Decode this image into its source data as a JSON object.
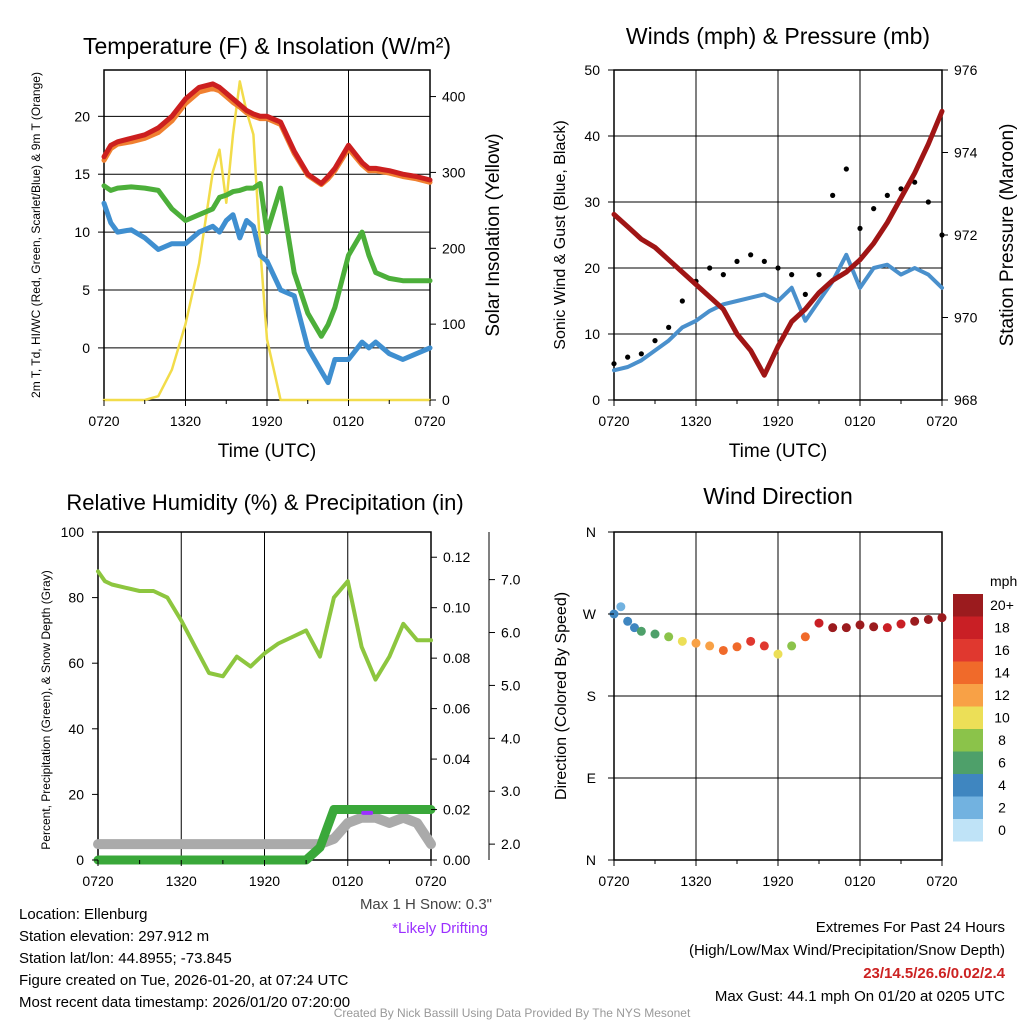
{
  "chart_data": [
    {
      "type": "line",
      "title": "Temperature (F) & Insolation (W/m²)",
      "xlabel": "Time (UTC)",
      "ylabel": "2m T, Td, HI/WC (Red, Green, Scarlet/Blue) & 9m T (Orange)",
      "ylabel_right": "Solar Insolation (Yellow)",
      "xlim": [
        0,
        24
      ],
      "x_ticks": [
        "0720",
        "1320",
        "1920",
        "0120",
        "0720"
      ],
      "ylim": [
        -4.5,
        24
      ],
      "y_ticks": [
        0,
        5,
        10,
        15,
        20
      ],
      "ylim_right": [
        0,
        435
      ],
      "y_ticks_right": [
        0,
        100,
        200,
        300,
        400
      ],
      "x": [
        0,
        0.5,
        1,
        2,
        3,
        4,
        5,
        6,
        7,
        8,
        8.5,
        9,
        9.5,
        10,
        10.5,
        11,
        11.5,
        12,
        13,
        14,
        15,
        16,
        16.5,
        17,
        18,
        19,
        19.5,
        20,
        21,
        22,
        23,
        24
      ],
      "series": [
        {
          "name": "2m T",
          "color": "#cc1f1f",
          "axis": "left",
          "values": [
            16.5,
            17.5,
            17.8,
            18.1,
            18.4,
            19.0,
            20.0,
            21.5,
            22.5,
            22.8,
            22.5,
            22.0,
            21.5,
            21.0,
            20.5,
            20.2,
            20.0,
            20.0,
            19.5,
            17.0,
            15.0,
            14.2,
            14.8,
            15.5,
            17.5,
            16.0,
            15.5,
            15.5,
            15.3,
            15.0,
            14.8,
            14.5
          ]
        },
        {
          "name": "9m T",
          "color": "#f08030",
          "axis": "left",
          "values": [
            16.2,
            17.2,
            17.6,
            17.8,
            18.1,
            18.6,
            19.6,
            21.1,
            22.1,
            22.4,
            22.2,
            21.7,
            21.2,
            20.8,
            20.3,
            20.0,
            19.8,
            19.8,
            19.3,
            16.8,
            14.9,
            14.1,
            14.6,
            15.3,
            17.2,
            15.8,
            15.3,
            15.3,
            15.1,
            14.8,
            14.6,
            14.3
          ]
        },
        {
          "name": "Td",
          "color": "#4caf3a",
          "axis": "left",
          "values": [
            14.0,
            13.6,
            13.8,
            13.9,
            13.8,
            13.6,
            12.0,
            11.0,
            11.5,
            12.0,
            13.0,
            13.2,
            13.5,
            13.6,
            13.8,
            13.8,
            14.2,
            10.0,
            13.8,
            6.5,
            3.0,
            1.0,
            2.0,
            3.5,
            8.0,
            10.0,
            8.0,
            6.5,
            6.0,
            5.8,
            5.8,
            5.8
          ]
        },
        {
          "name": "HI/WC",
          "color": "#3f8fd0",
          "axis": "left",
          "values": [
            12.5,
            10.8,
            10.0,
            10.2,
            9.5,
            8.5,
            9.0,
            9.0,
            10.0,
            10.5,
            10.0,
            11.0,
            11.5,
            9.5,
            11.0,
            10.5,
            8.0,
            7.5,
            5.0,
            4.5,
            0.0,
            -2.0,
            -3.0,
            -1.0,
            -1.0,
            0.5,
            0.0,
            0.5,
            -0.5,
            -1.0,
            -0.5,
            0.0
          ]
        },
        {
          "name": "Solar Insolation",
          "color": "#f2dc4a",
          "axis": "right",
          "values": [
            0,
            0,
            0,
            0,
            0,
            5,
            40,
            100,
            180,
            300,
            330,
            260,
            350,
            420,
            380,
            350,
            200,
            80,
            0,
            0,
            0,
            0,
            0,
            0,
            0,
            0,
            0,
            0,
            0,
            0,
            0,
            0
          ]
        }
      ]
    },
    {
      "type": "line",
      "title": "Winds (mph) & Pressure (mb)",
      "xlabel": "Time (UTC)",
      "ylabel": "Sonic Wind & Gust (Blue, Black)",
      "ylabel_right": "Station Pressure (Maroon)",
      "xlim": [
        0,
        24
      ],
      "x_ticks": [
        "0720",
        "1320",
        "1920",
        "0120",
        "0720"
      ],
      "ylim": [
        0,
        50
      ],
      "y_ticks": [
        0,
        10,
        20,
        30,
        40,
        50
      ],
      "ylim_right": [
        968,
        976
      ],
      "y_ticks_right": [
        968,
        970,
        972,
        974,
        976
      ],
      "x": [
        0,
        1,
        2,
        3,
        4,
        5,
        6,
        7,
        8,
        9,
        10,
        11,
        12,
        13,
        14,
        15,
        16,
        17,
        18,
        19,
        20,
        21,
        22,
        23,
        24
      ],
      "series": [
        {
          "name": "Sonic Wind",
          "color": "#4a90cc",
          "axis": "left",
          "values": [
            4.5,
            5.0,
            6.0,
            7.5,
            9.0,
            11.0,
            12.0,
            13.5,
            14.5,
            15.0,
            15.5,
            16.0,
            15.0,
            17.0,
            12.0,
            15.0,
            18.0,
            22.0,
            17.0,
            20.0,
            20.5,
            19.0,
            20.0,
            19.0,
            17.0
          ]
        },
        {
          "name": "Gust",
          "color": "#000000",
          "axis": "left",
          "values": [
            5.5,
            6.5,
            7.0,
            9.0,
            11.0,
            15.0,
            18.0,
            20.0,
            19.0,
            21.0,
            22.0,
            21.0,
            20.0,
            19.0,
            16.0,
            19.0,
            31.0,
            35.0,
            26.0,
            29.0,
            31.0,
            32.0,
            33.0,
            30.0,
            25.0
          ]
        },
        {
          "name": "Station Pressure",
          "color": "#a01515",
          "axis": "right",
          "values": [
            972.5,
            972.2,
            971.9,
            971.7,
            971.4,
            971.1,
            970.8,
            970.5,
            970.2,
            969.6,
            969.2,
            968.6,
            969.3,
            969.9,
            970.2,
            970.6,
            970.9,
            971.1,
            971.4,
            971.8,
            972.3,
            972.9,
            973.5,
            974.2,
            975.0
          ]
        }
      ]
    },
    {
      "type": "line",
      "title": "Relative Humidity (%) & Precipitation (in)",
      "ylabel": "Percent, Precipitation (Green), & Snow Depth (Gray)",
      "xlim": [
        0,
        24
      ],
      "x_ticks": [
        "0720",
        "1320",
        "1920",
        "0120",
        "0720"
      ],
      "ylim": [
        0,
        100
      ],
      "y_ticks": [
        0,
        20,
        40,
        60,
        80,
        100
      ],
      "ylim_precip": [
        0,
        0.13
      ],
      "y_ticks_precip": [
        "0.00",
        "0.02",
        "0.04",
        "0.06",
        "0.08",
        "0.10",
        "0.12"
      ],
      "ylim_snow": [
        1.7,
        7.9
      ],
      "y_ticks_snow": [
        "2.0",
        "3.0",
        "4.0",
        "5.0",
        "6.0",
        "7.0"
      ],
      "x": [
        0,
        0.5,
        1,
        2,
        3,
        4,
        5,
        6,
        7,
        8,
        9,
        10,
        11,
        12,
        13,
        14,
        15,
        16,
        17,
        18,
        19,
        20,
        21,
        22,
        23,
        24
      ],
      "series": [
        {
          "name": "Relative Humidity",
          "color": "#8dc63f",
          "axis": "left",
          "values": [
            88,
            85,
            84,
            83,
            82,
            82,
            80,
            73,
            65,
            57,
            56,
            62,
            59,
            63,
            66,
            68,
            70,
            62,
            80,
            85,
            65,
            55,
            62,
            72,
            67,
            67
          ]
        },
        {
          "name": "Precipitation",
          "color": "#3aa83a",
          "axis": "precip",
          "values": [
            0,
            0,
            0,
            0,
            0,
            0,
            0,
            0,
            0,
            0,
            0,
            0,
            0,
            0,
            0,
            0,
            0,
            0.005,
            0.02,
            0.02,
            0.02,
            0.02,
            0.02,
            0.02,
            0.02,
            0.02
          ]
        },
        {
          "name": "Snow Depth",
          "color": "#aaaaaa",
          "axis": "snow",
          "values": [
            2.0,
            2.0,
            2.0,
            2.0,
            2.0,
            2.0,
            2.0,
            2.0,
            2.0,
            2.0,
            2.0,
            2.0,
            2.0,
            2.0,
            2.0,
            2.0,
            2.0,
            2.0,
            2.1,
            2.4,
            2.5,
            2.5,
            2.4,
            2.5,
            2.4,
            2.0
          ]
        }
      ],
      "annotations": [
        "Max 1 H Snow: 0.3\"",
        "*Likely Drifting"
      ]
    },
    {
      "type": "scatter",
      "title": "Wind Direction",
      "ylabel": "Direction (Colored By Speed)",
      "xlim": [
        0,
        24
      ],
      "x_ticks": [
        "0720",
        "1320",
        "1920",
        "0120",
        "0720"
      ],
      "y_ticks": [
        "N",
        "E",
        "S",
        "W",
        "N"
      ],
      "ylim": [
        0,
        360
      ],
      "x": [
        0,
        0.5,
        1,
        1.5,
        2,
        3,
        4,
        5,
        6,
        7,
        8,
        9,
        10,
        11,
        12,
        13,
        14,
        15,
        16,
        17,
        18,
        19,
        20,
        21,
        22,
        23,
        24
      ],
      "direction": [
        270,
        278,
        262,
        255,
        251,
        248,
        245,
        240,
        238,
        235,
        230,
        234,
        240,
        235,
        226,
        235,
        245,
        260,
        255,
        255,
        258,
        256,
        255,
        259,
        262,
        264,
        266
      ],
      "speed": [
        4,
        3,
        4,
        5,
        6,
        7,
        9,
        11,
        12,
        13,
        15,
        14,
        17,
        16,
        11,
        9,
        15,
        19,
        20,
        21,
        20,
        20,
        19,
        19,
        20,
        20,
        20
      ],
      "legend_title": "mph",
      "legend_labels": [
        "20+",
        "18",
        "16",
        "14",
        "12",
        "10",
        "8",
        "6",
        "4",
        "2",
        "0"
      ],
      "legend_colors": [
        "#9b1b1e",
        "#c91f25",
        "#e0382f",
        "#f06a2a",
        "#f8a146",
        "#ecdf57",
        "#8bc34a",
        "#4ea06a",
        "#3f86c0",
        "#72b2e0",
        "#bfe3f7"
      ]
    }
  ],
  "info_left": {
    "location": "Location: Ellenburg",
    "elevation": "Station elevation: 297.912 m",
    "latlon": "Station lat/lon: 44.8955; -73.845",
    "created": "Figure created on Tue, 2026-01-20, at 07:24 UTC",
    "recent": "Most recent data timestamp: 2026/01/20 07:20:00"
  },
  "info_right": {
    "heading": "Extremes For Past 24 Hours",
    "subheading": "(High/Low/Max Wind/Precipitation/Snow Depth)",
    "values": "23/14.5/26.6/0.02/2.4",
    "gust": "Max Gust: 44.1 mph On 01/20 at 0205 UTC"
  },
  "snow_note": "Max 1 H Snow: 0.3\"",
  "drift_note": "*Likely Drifting",
  "credit": "Created By Nick Bassill Using Data Provided By The NYS Mesonet"
}
